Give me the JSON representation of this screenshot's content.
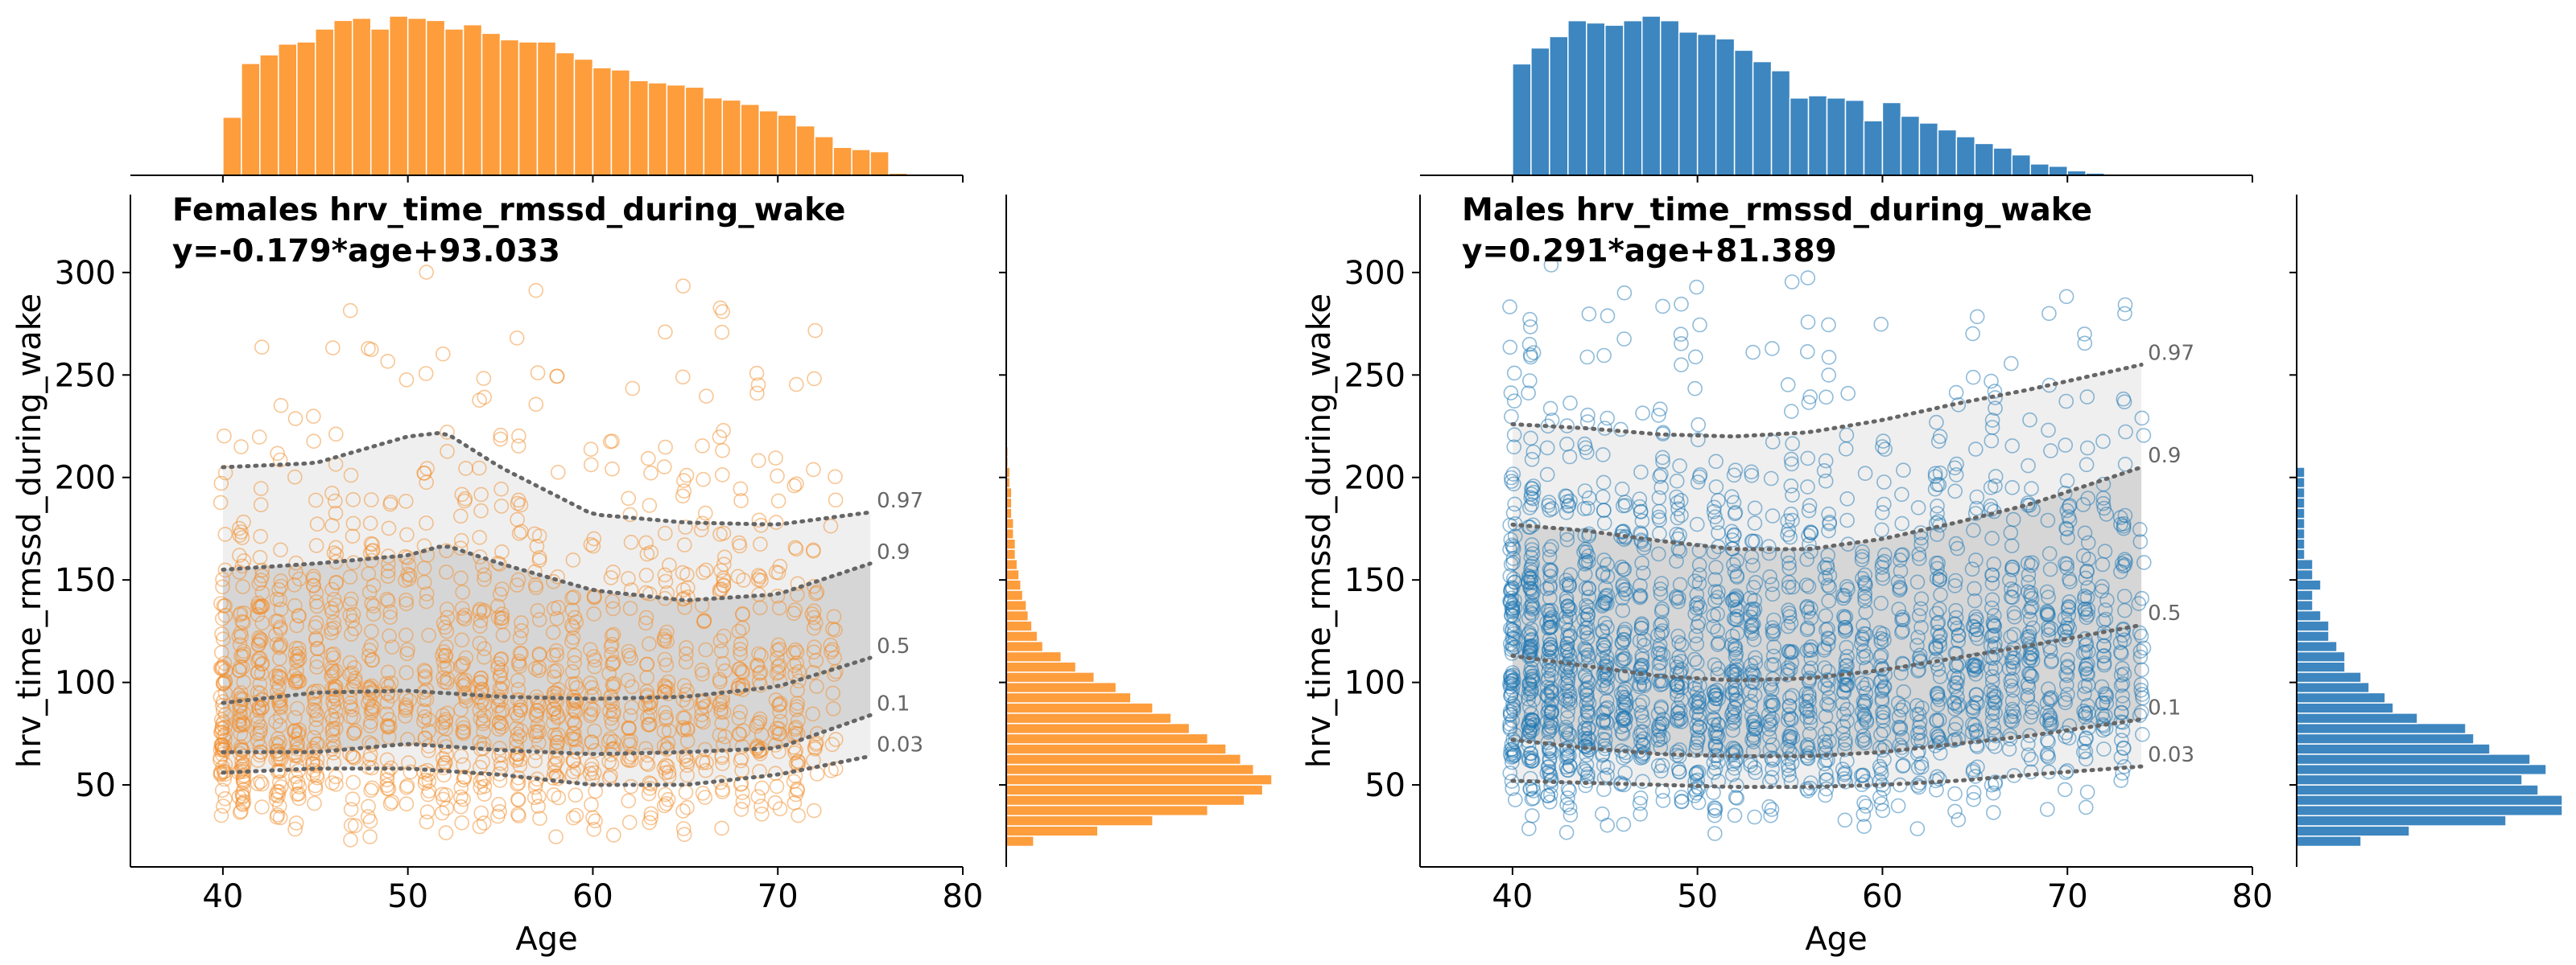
{
  "chart_data": [
    {
      "type": "scatter",
      "group": "Females",
      "title": "Females hrv_time_rmssd_during_wake",
      "equation": "y=-0.179*age+93.033",
      "xlabel": "Age",
      "ylabel": "hrv_time_rmssd_during_wake",
      "xlim": [
        35,
        80
      ],
      "ylim": [
        10,
        338
      ],
      "xticks": [
        40,
        50,
        60,
        70,
        80
      ],
      "yticks": [
        50,
        100,
        150,
        200,
        250,
        300
      ],
      "grid": false,
      "color": "#f28e2b",
      "fill_color": "#fd9d3c",
      "age_range": [
        40,
        75
      ],
      "quantile_curves": [
        {
          "name": "0.97",
          "x": [
            40,
            45,
            50,
            52,
            55,
            60,
            65,
            70,
            75
          ],
          "y": [
            205,
            207,
            220,
            222,
            205,
            182,
            178,
            177,
            183
          ]
        },
        {
          "name": "0.9",
          "x": [
            40,
            45,
            50,
            52,
            55,
            60,
            65,
            70,
            75
          ],
          "y": [
            155,
            158,
            162,
            167,
            158,
            145,
            140,
            143,
            158
          ]
        },
        {
          "name": "0.5",
          "x": [
            40,
            45,
            50,
            55,
            60,
            65,
            70,
            75
          ],
          "y": [
            90,
            95,
            96,
            93,
            92,
            93,
            98,
            112
          ]
        },
        {
          "name": "0.1",
          "x": [
            40,
            45,
            50,
            55,
            60,
            65,
            70,
            75
          ],
          "y": [
            66,
            66,
            70,
            67,
            65,
            66,
            68,
            84
          ]
        },
        {
          "name": "0.03",
          "x": [
            40,
            45,
            50,
            55,
            60,
            65,
            70,
            75
          ],
          "y": [
            56,
            58,
            58,
            55,
            50,
            50,
            55,
            64
          ]
        }
      ],
      "age_histogram": {
        "bin_start": 40,
        "bin_width": 1,
        "counts": [
          27,
          52,
          56,
          61,
          62,
          68,
          72,
          73,
          68,
          74,
          73,
          72,
          68,
          70,
          66,
          63,
          62,
          62,
          57,
          54,
          50,
          49,
          44,
          43,
          42,
          41,
          36,
          35,
          33,
          30,
          28,
          23,
          18,
          13,
          12,
          11,
          1,
          0,
          0,
          0,
          0,
          0,
          0,
          0
        ]
      },
      "value_histogram": {
        "bin_start": 20,
        "bin_width": 5,
        "counts": [
          15,
          50,
          80,
          110,
          130,
          140,
          145,
          135,
          128,
          120,
          110,
          100,
          90,
          80,
          68,
          60,
          48,
          38,
          30,
          20,
          17,
          14,
          12,
          11,
          9,
          8,
          7,
          6,
          5,
          5,
          4,
          4,
          3,
          3,
          3,
          2,
          2,
          1,
          1
        ]
      }
    },
    {
      "type": "scatter",
      "group": "Males",
      "title": "Males hrv_time_rmssd_during_wake",
      "equation": "y=0.291*age+81.389",
      "xlabel": "Age",
      "ylabel": "hrv_time_rmssd_during_wake",
      "xlim": [
        35,
        80
      ],
      "ylim": [
        10,
        338
      ],
      "xticks": [
        40,
        50,
        60,
        70,
        80
      ],
      "yticks": [
        50,
        100,
        150,
        200,
        250,
        300
      ],
      "grid": false,
      "color": "#1f77b4",
      "fill_color": "#3d86c0",
      "age_range": [
        40,
        74
      ],
      "quantile_curves": [
        {
          "name": "0.97",
          "x": [
            40,
            44,
            48,
            52,
            56,
            60,
            64,
            68,
            74
          ],
          "y": [
            226,
            224,
            221,
            220,
            222,
            228,
            236,
            243,
            255
          ]
        },
        {
          "name": "0.9",
          "x": [
            40,
            44,
            48,
            52,
            56,
            60,
            64,
            68,
            74
          ],
          "y": [
            177,
            174,
            169,
            165,
            165,
            170,
            178,
            187,
            205
          ]
        },
        {
          "name": "0.5",
          "x": [
            40,
            44,
            48,
            52,
            56,
            60,
            64,
            68,
            74
          ],
          "y": [
            113,
            108,
            103,
            101,
            102,
            106,
            112,
            118,
            128
          ]
        },
        {
          "name": "0.1",
          "x": [
            40,
            44,
            48,
            52,
            56,
            60,
            64,
            68,
            74
          ],
          "y": [
            72,
            68,
            65,
            64,
            64,
            66,
            70,
            74,
            82
          ]
        },
        {
          "name": "0.03",
          "x": [
            40,
            44,
            48,
            52,
            56,
            60,
            64,
            68,
            74
          ],
          "y": [
            52,
            51,
            50,
            49,
            49,
            50,
            52,
            55,
            59
          ]
        }
      ],
      "age_histogram": {
        "bin_start": 40,
        "bin_width": 1,
        "counts": [
          49,
          56,
          61,
          68,
          67,
          66,
          68,
          70,
          68,
          63,
          62,
          60,
          55,
          50,
          46,
          34,
          35,
          34,
          33,
          24,
          32,
          26,
          23,
          20,
          17,
          14,
          12,
          9,
          5,
          4,
          2,
          1,
          0,
          0,
          0,
          0,
          0,
          0,
          0,
          0,
          0,
          0,
          0,
          0
        ]
      },
      "value_histogram": {
        "bin_start": 20,
        "bin_width": 5,
        "counts": [
          8,
          14,
          26,
          33,
          33,
          30,
          28,
          31,
          29,
          24,
          22,
          21,
          15,
          12,
          11,
          9,
          8,
          6,
          6,
          5,
          4,
          4,
          3,
          2,
          2,
          3,
          2,
          2,
          1,
          1,
          1,
          1,
          1,
          1,
          1,
          1,
          1
        ]
      }
    }
  ]
}
